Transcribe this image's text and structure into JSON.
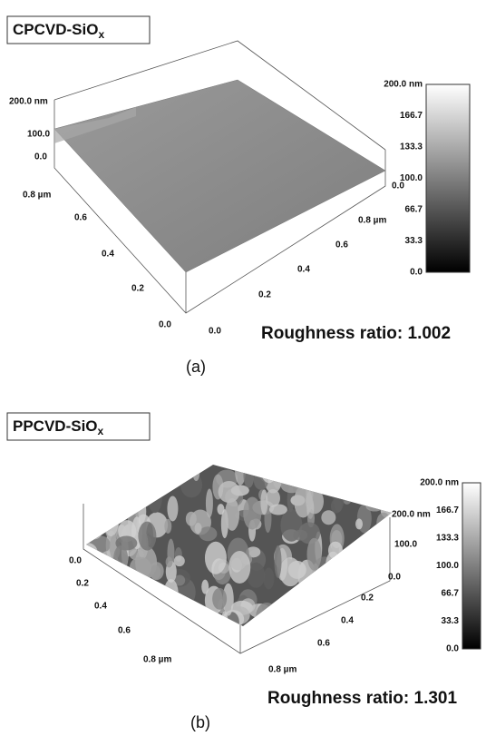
{
  "panels": [
    {
      "label": "CPCVD-SiO",
      "label_subscript": "x",
      "z_axis_labels": [
        "200.0 nm",
        "100.0",
        "0.0"
      ],
      "left_axis_labels": [
        "0.8 µm",
        "0.6",
        "0.4",
        "0.2",
        "0.0"
      ],
      "right_axis_labels": [
        "0.0",
        "0.2",
        "0.4",
        "0.6",
        "0.8 µm",
        "0.0"
      ],
      "colorbar_labels": [
        "200.0 nm",
        "166.7",
        "133.3",
        "100.0",
        "66.7",
        "33.3",
        "0.0"
      ],
      "roughness": "Roughness ratio: 1.002",
      "caption": "(a)"
    },
    {
      "label": "PPCVD-SiO",
      "label_subscript": "x",
      "z_axis_labels": [
        "200.0 nm",
        "100.0"
      ],
      "left_axis_labels": [
        "0.0",
        "0.2",
        "0.4",
        "0.6",
        "0.8 µm"
      ],
      "right_axis_labels": [
        "0.0",
        "0.2",
        "0.4",
        "0.6",
        "0.8 µm"
      ],
      "colorbar_labels": [
        "200.0 nm",
        "166.7",
        "133.3",
        "100.0",
        "66.7",
        "33.3",
        "0.0"
      ],
      "roughness": "Roughness ratio: 1.301",
      "caption": "(b)"
    }
  ]
}
